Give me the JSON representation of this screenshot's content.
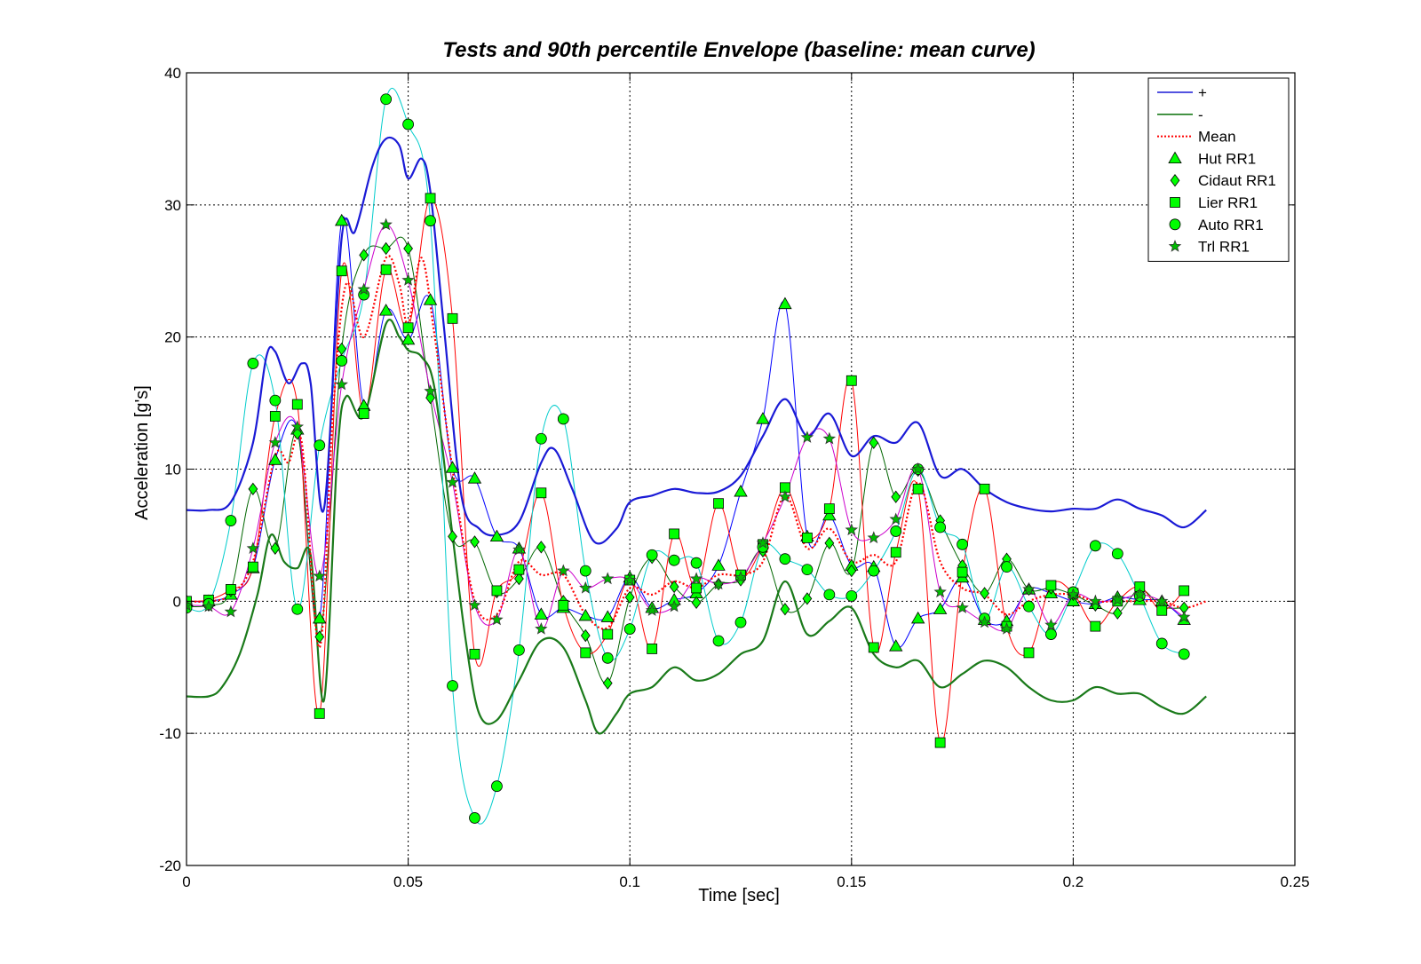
{
  "chart_data": {
    "type": "line",
    "title": "Tests and 90th percentile Envelope (baseline: mean curve)",
    "xlabel": "Time [sec]",
    "ylabel": "Acceleration [g's]",
    "xlim": [
      0,
      0.25
    ],
    "ylim": [
      -20,
      40
    ],
    "xticks": [
      0,
      0.05,
      0.1,
      0.15,
      0.2,
      0.25
    ],
    "xtick_labels": [
      "0",
      "0.05",
      "0.1",
      "0.15",
      "0.2",
      "0.25"
    ],
    "yticks": [
      -20,
      -10,
      0,
      10,
      20,
      30,
      40
    ],
    "ytick_labels": [
      "-20",
      "-10",
      "0",
      "10",
      "20",
      "30",
      "40"
    ],
    "grid": true,
    "legend_position": "top-right",
    "series": [
      {
        "name": "+",
        "color": "#1a1ad6",
        "style": "solid",
        "width": 2.2,
        "marker": "none",
        "x": [
          0,
          0.005,
          0.01,
          0.015,
          0.018,
          0.02,
          0.023,
          0.026,
          0.028,
          0.031,
          0.035,
          0.038,
          0.042,
          0.045,
          0.048,
          0.05,
          0.053,
          0.055,
          0.058,
          0.062,
          0.066,
          0.07,
          0.075,
          0.08,
          0.083,
          0.087,
          0.092,
          0.097,
          0.1,
          0.105,
          0.11,
          0.115,
          0.12,
          0.125,
          0.13,
          0.135,
          0.14,
          0.145,
          0.15,
          0.155,
          0.16,
          0.165,
          0.17,
          0.175,
          0.18,
          0.185,
          0.19,
          0.195,
          0.2,
          0.205,
          0.21,
          0.215,
          0.22,
          0.225,
          0.23
        ],
        "y": [
          6.9,
          6.9,
          7.5,
          12,
          18.5,
          18.9,
          16.5,
          18,
          16.5,
          7,
          27.5,
          28,
          33,
          35,
          34.5,
          32,
          33.5,
          31,
          21,
          8,
          5.5,
          5,
          6,
          10.5,
          11.5,
          8.5,
          4.5,
          5.5,
          7.5,
          8,
          8.5,
          8.2,
          8.3,
          9.5,
          12.5,
          15.3,
          12.5,
          14.2,
          11,
          12.5,
          12,
          13.5,
          9.5,
          10,
          8.5,
          7.5,
          7,
          6.8,
          7,
          7,
          7.7,
          7,
          6.5,
          5.6,
          6.9
        ]
      },
      {
        "name": "-",
        "color": "#1a7a1a",
        "style": "solid",
        "width": 2.2,
        "marker": "none",
        "x": [
          0,
          0.005,
          0.008,
          0.012,
          0.016,
          0.019,
          0.022,
          0.025,
          0.028,
          0.031,
          0.034,
          0.036,
          0.04,
          0.045,
          0.048,
          0.05,
          0.053,
          0.056,
          0.06,
          0.063,
          0.066,
          0.07,
          0.075,
          0.08,
          0.085,
          0.09,
          0.093,
          0.097,
          0.1,
          0.105,
          0.11,
          0.115,
          0.12,
          0.125,
          0.13,
          0.135,
          0.14,
          0.145,
          0.15,
          0.155,
          0.16,
          0.165,
          0.17,
          0.175,
          0.18,
          0.185,
          0.19,
          0.195,
          0.2,
          0.205,
          0.21,
          0.215,
          0.22,
          0.225,
          0.23
        ],
        "y": [
          -7.2,
          -7.2,
          -6.5,
          -4,
          0.5,
          5,
          3,
          2.5,
          3.5,
          -7.5,
          11,
          15.5,
          14,
          21,
          20,
          19,
          18.5,
          16,
          5,
          -3,
          -8.5,
          -9,
          -6,
          -3,
          -3.5,
          -7.5,
          -10,
          -8.5,
          -7,
          -6.5,
          -5,
          -6,
          -5.5,
          -4,
          -3,
          1.5,
          -2.5,
          -1.5,
          -0.5,
          -4,
          -5,
          -4.5,
          -6.5,
          -5.5,
          -4.5,
          -5,
          -6.5,
          -7.5,
          -7.5,
          -6.5,
          -7,
          -7,
          -8,
          -8.5,
          -7.2
        ]
      },
      {
        "name": "Mean",
        "color": "#ff0000",
        "style": "dotted",
        "width": 2.2,
        "marker": "none",
        "x": [
          0,
          0.005,
          0.01,
          0.015,
          0.02,
          0.023,
          0.026,
          0.03,
          0.033,
          0.036,
          0.04,
          0.045,
          0.048,
          0.05,
          0.053,
          0.056,
          0.06,
          0.065,
          0.07,
          0.075,
          0.08,
          0.085,
          0.09,
          0.095,
          0.1,
          0.105,
          0.11,
          0.115,
          0.12,
          0.125,
          0.13,
          0.135,
          0.14,
          0.145,
          0.15,
          0.155,
          0.16,
          0.165,
          0.17,
          0.175,
          0.18,
          0.185,
          0.19,
          0.195,
          0.2,
          0.205,
          0.21,
          0.215,
          0.22,
          0.225,
          0.23
        ],
        "y": [
          0,
          0,
          0.5,
          3,
          11,
          10.5,
          12,
          -3.5,
          14,
          24,
          20,
          26,
          24,
          21,
          26,
          20,
          10,
          0,
          -1,
          3,
          2,
          2,
          -1,
          -2,
          1,
          0.5,
          1.5,
          1,
          2,
          2,
          3,
          8,
          4,
          5.5,
          3,
          3.5,
          3,
          9,
          3,
          1,
          0.5,
          -1,
          0,
          0.5,
          0.5,
          0,
          0,
          0,
          0,
          -0.5,
          0
        ]
      },
      {
        "name": "Hut RR1",
        "color": "#0000ff",
        "style": "solid",
        "width": 1,
        "marker": "triangle",
        "x": [
          0,
          0.005,
          0.01,
          0.015,
          0.02,
          0.025,
          0.03,
          0.035,
          0.04,
          0.045,
          0.05,
          0.055,
          0.06,
          0.065,
          0.07,
          0.075,
          0.08,
          0.085,
          0.09,
          0.095,
          0.1,
          0.105,
          0.11,
          0.115,
          0.12,
          0.125,
          0.13,
          0.135,
          0.14,
          0.145,
          0.15,
          0.155,
          0.16,
          0.165,
          0.17,
          0.175,
          0.18,
          0.185,
          0.19,
          0.195,
          0.2,
          0.205,
          0.21,
          0.215,
          0.22,
          0.225
        ],
        "y": [
          0,
          0,
          0.5,
          2.5,
          10.7,
          13,
          -1.3,
          28.8,
          14.8,
          22,
          19.8,
          22.8,
          10.1,
          9.3,
          4.9,
          4,
          -1,
          -0.5,
          -1.1,
          -1.2,
          1.8,
          -0.5,
          0.1,
          0.6,
          2.7,
          8.3,
          13.8,
          22.5,
          4.9,
          6.5,
          2.7,
          2.6,
          -3.4,
          -1.3,
          -0.6,
          1.8,
          -1.4,
          -1.5,
          0.9,
          0.6,
          0,
          -0.2,
          0.3,
          0.1,
          0,
          -1.4
        ]
      },
      {
        "name": "Cidaut RR1",
        "color": "#006600",
        "style": "solid",
        "width": 1,
        "marker": "diamond",
        "x": [
          0,
          0.005,
          0.01,
          0.015,
          0.02,
          0.025,
          0.03,
          0.035,
          0.04,
          0.045,
          0.05,
          0.055,
          0.06,
          0.065,
          0.07,
          0.075,
          0.08,
          0.085,
          0.09,
          0.095,
          0.1,
          0.105,
          0.11,
          0.115,
          0.12,
          0.125,
          0.13,
          0.135,
          0.14,
          0.145,
          0.15,
          0.155,
          0.16,
          0.165,
          0.17,
          0.175,
          0.18,
          0.185,
          0.19,
          0.195,
          0.2,
          0.205,
          0.21,
          0.215,
          0.22,
          0.225
        ],
        "y": [
          -0.4,
          -0.3,
          0.8,
          8.5,
          4,
          12.7,
          -2.7,
          19.1,
          26.2,
          26.7,
          26.7,
          15.4,
          4.9,
          4.5,
          0.7,
          1.7,
          4.1,
          0,
          -2.6,
          -6.2,
          0.3,
          3.3,
          1.1,
          -0.1,
          1.3,
          1.6,
          3.8,
          -0.6,
          0.2,
          4.4,
          2.3,
          12,
          7.9,
          9.9,
          6.1,
          2.7,
          0.6,
          3.2,
          0.9,
          1,
          0.5,
          -0.3,
          -0.9,
          0.9,
          -0.4,
          -0.5
        ]
      },
      {
        "name": "Lier RR1",
        "color": "#ff0000",
        "style": "solid",
        "width": 1,
        "marker": "square",
        "x": [
          0,
          0.005,
          0.01,
          0.015,
          0.02,
          0.025,
          0.03,
          0.035,
          0.04,
          0.045,
          0.05,
          0.055,
          0.06,
          0.065,
          0.07,
          0.075,
          0.08,
          0.085,
          0.09,
          0.095,
          0.1,
          0.105,
          0.11,
          0.115,
          0.12,
          0.125,
          0.13,
          0.135,
          0.14,
          0.145,
          0.15,
          0.155,
          0.16,
          0.165,
          0.17,
          0.175,
          0.18,
          0.185,
          0.19,
          0.195,
          0.2,
          0.205,
          0.21,
          0.215,
          0.22,
          0.225
        ],
        "y": [
          0,
          0.1,
          0.9,
          2.6,
          14,
          14.9,
          -8.5,
          25,
          14.2,
          25.1,
          20.7,
          30.5,
          21.4,
          -4,
          0.8,
          2.4,
          8.2,
          -0.3,
          -3.9,
          -2.5,
          1.6,
          -3.6,
          5.1,
          1,
          7.4,
          2,
          4.3,
          8.6,
          4.8,
          7,
          16.7,
          -3.5,
          3.7,
          8.5,
          -10.7,
          2.2,
          8.5,
          -1.9,
          -3.9,
          1.2,
          0.6,
          -1.9,
          0,
          1.1,
          -0.7,
          0.8
        ]
      },
      {
        "name": "Auto RR1",
        "color": "#00cccc",
        "style": "solid",
        "width": 1,
        "marker": "circle",
        "x": [
          0,
          0.005,
          0.01,
          0.015,
          0.02,
          0.025,
          0.03,
          0.035,
          0.04,
          0.045,
          0.05,
          0.055,
          0.06,
          0.065,
          0.07,
          0.075,
          0.08,
          0.085,
          0.09,
          0.095,
          0.1,
          0.105,
          0.11,
          0.115,
          0.12,
          0.125,
          0.13,
          0.135,
          0.14,
          0.145,
          0.15,
          0.155,
          0.16,
          0.165,
          0.17,
          0.175,
          0.18,
          0.185,
          0.19,
          0.195,
          0.2,
          0.205,
          0.21,
          0.215,
          0.22,
          0.225
        ],
        "y": [
          -0.5,
          -0.2,
          6.1,
          18,
          15.2,
          -0.6,
          11.8,
          18.2,
          23.2,
          38,
          36.1,
          28.8,
          -6.4,
          -16.4,
          -14,
          -3.7,
          12.3,
          13.8,
          2.3,
          -4.3,
          -2.1,
          3.5,
          3.1,
          2.9,
          -3,
          -1.6,
          4.1,
          3.2,
          2.4,
          0.5,
          0.4,
          2.3,
          5.3,
          10,
          5.6,
          4.3,
          -1.3,
          2.6,
          -0.4,
          -2.5,
          0.7,
          4.2,
          3.6,
          0.4,
          -3.2,
          -4
        ]
      },
      {
        "name": "Trl RR1",
        "color": "#cc00cc",
        "style": "solid",
        "width": 1,
        "marker": "star",
        "x": [
          0,
          0.005,
          0.01,
          0.015,
          0.02,
          0.025,
          0.03,
          0.035,
          0.04,
          0.045,
          0.05,
          0.055,
          0.06,
          0.065,
          0.07,
          0.075,
          0.08,
          0.085,
          0.09,
          0.095,
          0.1,
          0.105,
          0.11,
          0.115,
          0.12,
          0.125,
          0.13,
          0.135,
          0.14,
          0.145,
          0.15,
          0.155,
          0.16,
          0.165,
          0.17,
          0.175,
          0.18,
          0.185,
          0.19,
          0.195,
          0.2,
          0.205,
          0.21,
          0.215,
          0.22,
          0.225
        ],
        "y": [
          -0.3,
          -0.4,
          -0.8,
          4,
          12,
          13.2,
          1.9,
          16.4,
          23.6,
          28.5,
          24.3,
          15.9,
          9,
          -0.3,
          -1.4,
          3.9,
          -2.1,
          2.3,
          1,
          1.7,
          1.6,
          -0.7,
          -0.4,
          1.7,
          1.3,
          1.8,
          4.4,
          7.9,
          12.4,
          12.3,
          5.4,
          4.8,
          6.2,
          10,
          0.7,
          -0.5,
          -1.6,
          -2.1,
          0.9,
          -1.8,
          0.5,
          0,
          0.1,
          0.5,
          0,
          -1.2
        ]
      }
    ]
  }
}
